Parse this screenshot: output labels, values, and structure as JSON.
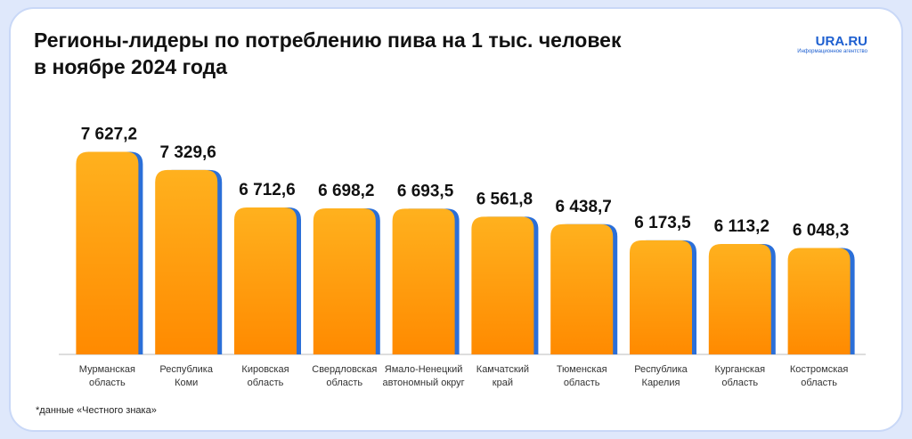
{
  "chart_data": {
    "type": "bar",
    "title": "Регионы-лидеры по потреблению пива на 1 тыс. человек\nв ноябре 2024 года",
    "brand": "URA.RU",
    "brand_subtitle": "Информационное агентство",
    "footnote": "*данные «Честного знака»",
    "categories": [
      "Мурманская\nобласть",
      "Республика\nКоми",
      "Кировская\nобласть",
      "Свердловская\nобласть",
      "Ямало-Ненецкий\nавтономный округ",
      "Камчатский\nкрай",
      "Тюменская\nобласть",
      "Республика\nКарелия",
      "Курганская\nобласть",
      "Костромская\nобласть"
    ],
    "values": [
      7627.2,
      7329.6,
      6712.6,
      6698.2,
      6693.5,
      6561.8,
      6438.7,
      6173.5,
      6113.2,
      6048.3
    ],
    "value_labels": [
      "7 627,2",
      "7 329,6",
      "6 712,6",
      "6 698,2",
      "6 693,5",
      "6 561,8",
      "6 438,7",
      "6 173,5",
      "6 113,2",
      "6 048,3"
    ],
    "color": "#ff9a0a",
    "shadow_color": "#2b6fd8",
    "ylim": [
      4300,
      8000
    ]
  }
}
